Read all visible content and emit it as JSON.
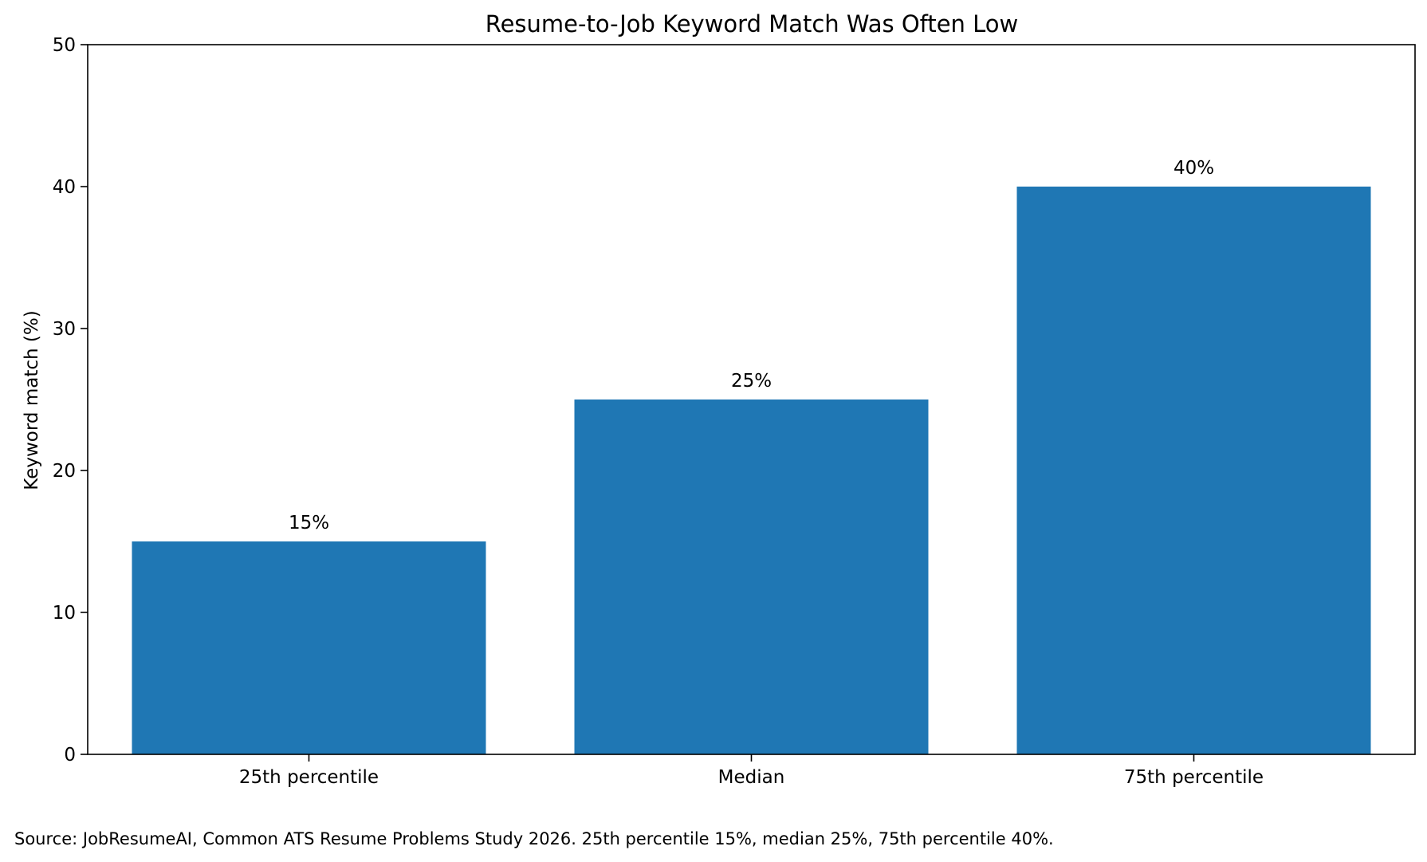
{
  "chart_data": {
    "type": "bar",
    "title": "Resume-to-Job Keyword Match Was Often Low",
    "xlabel": "",
    "ylabel": "Keyword match (%)",
    "categories": [
      "25th percentile",
      "Median",
      "75th percentile"
    ],
    "values": [
      15,
      25,
      40
    ],
    "data_labels": [
      "15%",
      "25%",
      "40%"
    ],
    "ylim": [
      0,
      50
    ],
    "yticks": [
      0,
      10,
      20,
      30,
      40,
      50
    ],
    "grid": false,
    "legend": "none",
    "bar_color": "#1f77b4",
    "source_note": "Source: JobResumeAI, Common ATS Resume Problems Study 2026. 25th percentile 15%, median 25%, 75th percentile 40%."
  }
}
